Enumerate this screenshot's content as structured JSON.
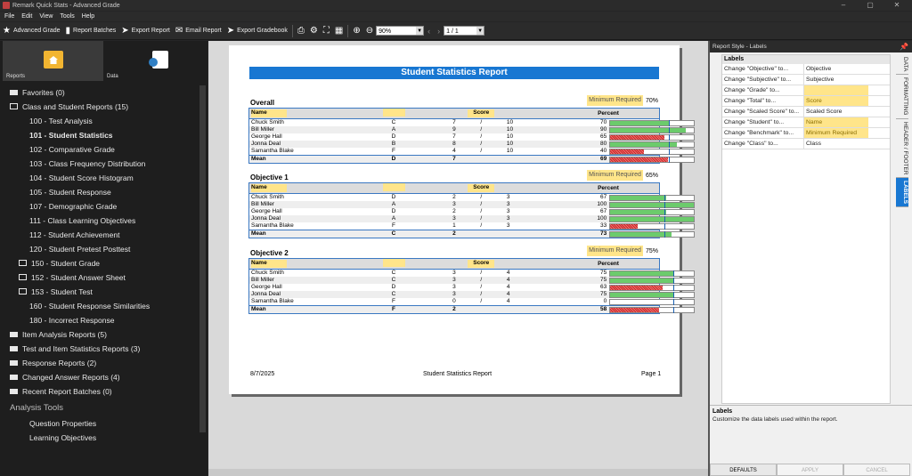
{
  "window": {
    "title": "Remark Quick Stats - Advanced Grade"
  },
  "menu": [
    "File",
    "Edit",
    "View",
    "Tools",
    "Help"
  ],
  "toolbar": {
    "advanced_grade": "Advanced Grade",
    "report_batches": "Report Batches",
    "export_report": "Export Report",
    "email_report": "Email Report",
    "export_gradebook": "Export Gradebook",
    "zoom": "90%",
    "page": "1 / 1"
  },
  "nav": {
    "reports": "Reports",
    "data": "Data"
  },
  "tree": [
    {
      "label": "Favorites (0)",
      "kind": "folder",
      "indent": 0
    },
    {
      "label": "Class and Student Reports (15)",
      "kind": "folder-open",
      "indent": 0
    },
    {
      "label": "100 - Test Analysis",
      "kind": "item",
      "indent": 1
    },
    {
      "label": "101 - Student Statistics",
      "kind": "item",
      "indent": 1,
      "bold": true
    },
    {
      "label": "102 - Comparative Grade",
      "kind": "item",
      "indent": 1
    },
    {
      "label": "103 - Class Frequency Distribution",
      "kind": "item",
      "indent": 1
    },
    {
      "label": "104 - Student Score Histogram",
      "kind": "item",
      "indent": 1
    },
    {
      "label": "105 - Student Response",
      "kind": "item",
      "indent": 1
    },
    {
      "label": "107 - Demographic Grade",
      "kind": "item",
      "indent": 1
    },
    {
      "label": "111 - Class Learning Objectives",
      "kind": "item",
      "indent": 1
    },
    {
      "label": "112 - Student Achievement",
      "kind": "item",
      "indent": 1
    },
    {
      "label": "120 - Student Pretest Posttest",
      "kind": "item",
      "indent": 1
    },
    {
      "label": "150 - Student Grade",
      "kind": "email",
      "indent": 0
    },
    {
      "label": "152 - Student Answer Sheet",
      "kind": "email",
      "indent": 0
    },
    {
      "label": "153 - Student Test",
      "kind": "email",
      "indent": 0
    },
    {
      "label": "160 - Student Response Similarities",
      "kind": "item",
      "indent": 1
    },
    {
      "label": "180 - Incorrect Response",
      "kind": "item",
      "indent": 1
    },
    {
      "label": "Item Analysis Reports (5)",
      "kind": "folder",
      "indent": 0
    },
    {
      "label": "Test and Item Statistics Reports (3)",
      "kind": "folder",
      "indent": 0
    },
    {
      "label": "Response Reports (2)",
      "kind": "folder",
      "indent": 0
    },
    {
      "label": "Changed Answer Reports (4)",
      "kind": "folder",
      "indent": 0
    },
    {
      "label": "Recent Report Batches (0)",
      "kind": "folder",
      "indent": 0
    },
    {
      "label": "Analysis Tools",
      "kind": "section",
      "indent": 0
    },
    {
      "label": "Question Properties",
      "kind": "item",
      "indent": 1
    },
    {
      "label": "Learning Objectives",
      "kind": "item",
      "indent": 1
    }
  ],
  "report": {
    "title": "Student Statistics Report",
    "col_name": "Name",
    "col_score": "Score",
    "col_percent": "Percent",
    "min_req_label": "Minimum Required",
    "sections": [
      {
        "title": "Overall",
        "min": "70%",
        "min_frac": 0.7,
        "rows": [
          {
            "name": "Chuck Smith",
            "grade": "C",
            "score": "7",
            "sep": "/",
            "total": "10",
            "pct": "70",
            "frac": 0.7,
            "pass": true
          },
          {
            "name": "Bill Miller",
            "grade": "A",
            "score": "9",
            "sep": "/",
            "total": "10",
            "pct": "90",
            "frac": 0.9,
            "pass": true
          },
          {
            "name": "George Hall",
            "grade": "D",
            "score": "7",
            "sep": "/",
            "total": "10",
            "pct": "65",
            "frac": 0.65,
            "pass": false
          },
          {
            "name": "Jonna Deal",
            "grade": "B",
            "score": "8",
            "sep": "/",
            "total": "10",
            "pct": "80",
            "frac": 0.8,
            "pass": true
          },
          {
            "name": "Samantha Blake",
            "grade": "F",
            "score": "4",
            "sep": "/",
            "total": "10",
            "pct": "40",
            "frac": 0.4,
            "pass": false
          },
          {
            "name": "Mean",
            "grade": "D",
            "score": "7",
            "sep": "",
            "total": "",
            "pct": "69",
            "frac": 0.69,
            "pass": false,
            "mean": true
          }
        ]
      },
      {
        "title": "Objective 1",
        "min": "65%",
        "min_frac": 0.65,
        "rows": [
          {
            "name": "Chuck Smith",
            "grade": "D",
            "score": "2",
            "sep": "/",
            "total": "3",
            "pct": "67",
            "frac": 0.67,
            "pass": true
          },
          {
            "name": "Bill Miller",
            "grade": "A",
            "score": "3",
            "sep": "/",
            "total": "3",
            "pct": "100",
            "frac": 1.0,
            "pass": true
          },
          {
            "name": "George Hall",
            "grade": "D",
            "score": "2",
            "sep": "/",
            "total": "3",
            "pct": "67",
            "frac": 0.67,
            "pass": true
          },
          {
            "name": "Jonna Deal",
            "grade": "A",
            "score": "3",
            "sep": "/",
            "total": "3",
            "pct": "100",
            "frac": 1.0,
            "pass": true
          },
          {
            "name": "Samantha Blake",
            "grade": "F",
            "score": "1",
            "sep": "/",
            "total": "3",
            "pct": "33",
            "frac": 0.33,
            "pass": false
          },
          {
            "name": "Mean",
            "grade": "C",
            "score": "2",
            "sep": "",
            "total": "",
            "pct": "73",
            "frac": 0.73,
            "pass": true,
            "mean": true
          }
        ]
      },
      {
        "title": "Objective 2",
        "min": "75%",
        "min_frac": 0.75,
        "rows": [
          {
            "name": "Chuck Smith",
            "grade": "C",
            "score": "3",
            "sep": "/",
            "total": "4",
            "pct": "75",
            "frac": 0.75,
            "pass": true
          },
          {
            "name": "Bill Miller",
            "grade": "C",
            "score": "3",
            "sep": "/",
            "total": "4",
            "pct": "75",
            "frac": 0.75,
            "pass": true
          },
          {
            "name": "George Hall",
            "grade": "D",
            "score": "3",
            "sep": "/",
            "total": "4",
            "pct": "63",
            "frac": 0.63,
            "pass": false
          },
          {
            "name": "Jonna Deal",
            "grade": "C",
            "score": "3",
            "sep": "/",
            "total": "4",
            "pct": "75",
            "frac": 0.75,
            "pass": true
          },
          {
            "name": "Samantha Blake",
            "grade": "F",
            "score": "0",
            "sep": "/",
            "total": "4",
            "pct": "0",
            "frac": 0.0,
            "pass": false
          },
          {
            "name": "Mean",
            "grade": "F",
            "score": "2",
            "sep": "",
            "total": "",
            "pct": "58",
            "frac": 0.58,
            "pass": false,
            "mean": true
          }
        ]
      }
    ],
    "footer_date": "8/7/2025",
    "footer_title": "Student Statistics Report",
    "footer_page": "Page 1"
  },
  "panel": {
    "header": "Report Style - Labels",
    "labels_title": "Labels",
    "rows": [
      {
        "k": "Change \"Objective\" to...",
        "v": "Objective",
        "hl": false
      },
      {
        "k": "Change \"Subjective\" to...",
        "v": "Subjective",
        "hl": false
      },
      {
        "k": "Change \"Grade\" to...",
        "v": "",
        "hl": true
      },
      {
        "k": "Change \"Total\" to...",
        "v": "Score",
        "hl": true
      },
      {
        "k": "Change \"Scaled Score\" to...",
        "v": "Scaled Score",
        "hl": false
      },
      {
        "k": "Change \"Student\" to...",
        "v": "Name",
        "hl": true
      },
      {
        "k": "Change \"Benchmark\" to...",
        "v": "Minimum Required",
        "hl": true
      },
      {
        "k": "Change \"Class\" to...",
        "v": "Class",
        "hl": false
      }
    ],
    "tabs": [
      "DATA",
      "FORMATTING",
      "HEADER / FOOTER",
      "LABELS"
    ],
    "desc_title": "Labels",
    "desc_text": "Customize the data labels used within the report.",
    "buttons": {
      "defaults": "DEFAULTS",
      "apply": "APPLY",
      "cancel": "CANCEL"
    }
  }
}
